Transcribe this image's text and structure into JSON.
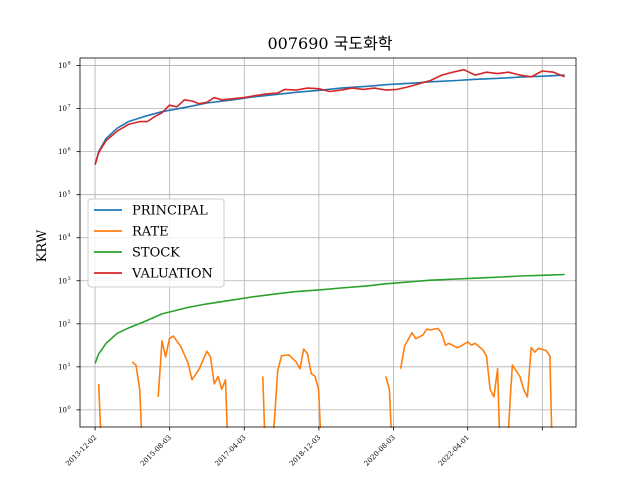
{
  "chart_data": {
    "type": "line",
    "title": "007690 국도화학",
    "xlabel": "",
    "ylabel": "KRW",
    "yscale": "log",
    "ylim": [
      0.4,
      150000000
    ],
    "y_ticks": [
      {
        "value": 1,
        "label": "10",
        "exp": "0"
      },
      {
        "value": 10,
        "label": "10",
        "exp": "1"
      },
      {
        "value": 100,
        "label": "10",
        "exp": "2"
      },
      {
        "value": 1000,
        "label": "10",
        "exp": "3"
      },
      {
        "value": 10000,
        "label": "10",
        "exp": "4"
      },
      {
        "value": 100000,
        "label": "10",
        "exp": "5"
      },
      {
        "value": 1000000,
        "label": "10",
        "exp": "6"
      },
      {
        "value": 10000000,
        "label": "10",
        "exp": "7"
      },
      {
        "value": 100000000,
        "label": "10",
        "exp": "8"
      }
    ],
    "xlim": [
      "2013-08-01",
      "2024-09-01"
    ],
    "x_ticks": [
      {
        "date": "2013-12-02",
        "label": "2013-12-02"
      },
      {
        "date": "2015-08-03",
        "label": "2015-08-03"
      },
      {
        "date": "2017-04-03",
        "label": "2017-04-03"
      },
      {
        "date": "2018-12-03",
        "label": "2018-12-03"
      },
      {
        "date": "2020-08-03",
        "label": "2020-08-03"
      },
      {
        "date": "2022-04-01",
        "label": "2022-04-01"
      },
      {
        "date": "2023-12-01",
        "label": ""
      }
    ],
    "grid": true,
    "legend_position": "center-left",
    "series": [
      {
        "name": "PRINCIPAL",
        "color": "#1f77b4",
        "points": [
          [
            "2013-12-02",
            500000
          ],
          [
            "2014-01-01",
            1000000
          ],
          [
            "2014-03-01",
            2000000
          ],
          [
            "2014-06-01",
            3500000
          ],
          [
            "2014-09-01",
            5000000
          ],
          [
            "2015-01-01",
            6500000
          ],
          [
            "2015-06-01",
            8500000
          ],
          [
            "2016-01-01",
            11000000
          ],
          [
            "2016-06-01",
            13500000
          ],
          [
            "2017-01-01",
            16000000
          ],
          [
            "2017-06-01",
            18500000
          ],
          [
            "2018-01-01",
            21500000
          ],
          [
            "2018-06-01",
            24000000
          ],
          [
            "2019-01-01",
            27000000
          ],
          [
            "2019-06-01",
            30000000
          ],
          [
            "2020-01-01",
            33000000
          ],
          [
            "2020-06-01",
            36000000
          ],
          [
            "2021-01-01",
            39000000
          ],
          [
            "2021-06-01",
            42000000
          ],
          [
            "2022-01-01",
            45000000
          ],
          [
            "2022-06-01",
            48000000
          ],
          [
            "2023-01-01",
            51000000
          ],
          [
            "2023-06-01",
            54000000
          ],
          [
            "2024-01-01",
            57000000
          ],
          [
            "2024-06-01",
            60000000
          ]
        ]
      },
      {
        "name": "RATE",
        "color": "#ff7f0e",
        "points": [
          [
            "2013-12-02",
            null
          ],
          [
            "2014-01-01",
            4
          ],
          [
            "2014-01-15",
            0.1
          ],
          [
            "2014-02-01",
            null
          ],
          [
            "2014-09-01",
            null
          ],
          [
            "2014-10-01",
            13
          ],
          [
            "2014-11-01",
            11
          ],
          [
            "2014-12-01",
            3
          ],
          [
            "2014-12-15",
            0.1
          ],
          [
            "2015-01-01",
            null
          ],
          [
            "2015-04-01",
            null
          ],
          [
            "2015-05-01",
            2
          ],
          [
            "2015-06-01",
            40
          ],
          [
            "2015-07-01",
            17
          ],
          [
            "2015-08-01",
            45
          ],
          [
            "2015-09-01",
            52
          ],
          [
            "2015-11-01",
            30
          ],
          [
            "2016-01-01",
            12
          ],
          [
            "2016-02-01",
            5
          ],
          [
            "2016-04-01",
            9
          ],
          [
            "2016-06-01",
            23
          ],
          [
            "2016-07-01",
            17
          ],
          [
            "2016-08-01",
            4
          ],
          [
            "2016-09-01",
            6
          ],
          [
            "2016-10-01",
            3
          ],
          [
            "2016-11-01",
            5
          ],
          [
            "2016-11-15",
            0.1
          ],
          [
            "2016-12-01",
            null
          ],
          [
            "2017-08-01",
            null
          ],
          [
            "2017-09-01",
            6
          ],
          [
            "2017-09-15",
            0.1
          ],
          [
            "2017-10-01",
            null
          ],
          [
            "2017-11-01",
            null
          ],
          [
            "2017-12-01",
            0.1
          ],
          [
            "2018-01-01",
            8
          ],
          [
            "2018-02-01",
            18
          ],
          [
            "2018-04-01",
            19
          ],
          [
            "2018-06-01",
            13
          ],
          [
            "2018-07-01",
            9
          ],
          [
            "2018-08-01",
            26
          ],
          [
            "2018-09-01",
            20
          ],
          [
            "2018-10-01",
            7
          ],
          [
            "2018-11-01",
            6
          ],
          [
            "2018-12-01",
            3
          ],
          [
            "2018-12-15",
            0.1
          ],
          [
            "2019-01-01",
            null
          ],
          [
            "2020-05-01",
            null
          ],
          [
            "2020-06-01",
            6
          ],
          [
            "2020-07-01",
            3
          ],
          [
            "2020-07-15",
            0.1
          ],
          [
            "2020-08-01",
            null
          ],
          [
            "2020-09-01",
            null
          ],
          [
            "2020-10-01",
            9
          ],
          [
            "2020-11-01",
            30
          ],
          [
            "2021-01-01",
            62
          ],
          [
            "2021-02-01",
            45
          ],
          [
            "2021-04-01",
            55
          ],
          [
            "2021-05-01",
            75
          ],
          [
            "2021-06-01",
            72
          ],
          [
            "2021-08-01",
            78
          ],
          [
            "2021-09-01",
            60
          ],
          [
            "2021-10-01",
            32
          ],
          [
            "2021-11-01",
            35
          ],
          [
            "2022-01-01",
            28
          ],
          [
            "2022-02-01",
            30
          ],
          [
            "2022-04-01",
            38
          ],
          [
            "2022-05-01",
            32
          ],
          [
            "2022-06-01",
            35
          ],
          [
            "2022-08-01",
            25
          ],
          [
            "2022-09-01",
            18
          ],
          [
            "2022-10-01",
            3
          ],
          [
            "2022-11-01",
            2
          ],
          [
            "2022-12-01",
            9
          ],
          [
            "2022-12-15",
            0.1
          ],
          [
            "2023-01-01",
            null
          ],
          [
            "2023-02-01",
            null
          ],
          [
            "2023-03-01",
            0.1
          ],
          [
            "2023-03-15",
            2
          ],
          [
            "2023-04-01",
            11
          ],
          [
            "2023-06-01",
            6
          ],
          [
            "2023-07-01",
            3
          ],
          [
            "2023-08-01",
            2
          ],
          [
            "2023-09-01",
            28
          ],
          [
            "2023-10-01",
            22
          ],
          [
            "2023-11-01",
            27
          ],
          [
            "2024-01-01",
            24
          ],
          [
            "2024-02-01",
            18
          ],
          [
            "2024-02-15",
            0.1
          ],
          [
            "2024-03-01",
            null
          ]
        ]
      },
      {
        "name": "STOCK",
        "color": "#2ca02c",
        "points": [
          [
            "2013-12-02",
            12
          ],
          [
            "2014-01-01",
            20
          ],
          [
            "2014-03-01",
            35
          ],
          [
            "2014-06-01",
            60
          ],
          [
            "2014-09-01",
            80
          ],
          [
            "2015-01-01",
            110
          ],
          [
            "2015-06-01",
            170
          ],
          [
            "2016-01-01",
            240
          ],
          [
            "2016-06-01",
            290
          ],
          [
            "2017-01-01",
            360
          ],
          [
            "2017-06-01",
            420
          ],
          [
            "2018-01-01",
            500
          ],
          [
            "2018-06-01",
            560
          ],
          [
            "2019-01-01",
            620
          ],
          [
            "2019-06-01",
            680
          ],
          [
            "2020-01-01",
            760
          ],
          [
            "2020-06-01",
            850
          ],
          [
            "2021-01-01",
            950
          ],
          [
            "2021-06-01",
            1030
          ],
          [
            "2022-01-01",
            1100
          ],
          [
            "2022-06-01",
            1150
          ],
          [
            "2023-01-01",
            1220
          ],
          [
            "2023-06-01",
            1290
          ],
          [
            "2024-01-01",
            1350
          ],
          [
            "2024-06-01",
            1400
          ]
        ]
      },
      {
        "name": "VALUATION",
        "color": "#d62728",
        "points": [
          [
            "2013-12-02",
            500000
          ],
          [
            "2014-01-01",
            950000
          ],
          [
            "2014-03-01",
            1800000
          ],
          [
            "2014-06-01",
            3000000
          ],
          [
            "2014-09-01",
            4300000
          ],
          [
            "2014-12-01",
            5000000
          ],
          [
            "2015-02-01",
            5000000
          ],
          [
            "2015-04-01",
            6500000
          ],
          [
            "2015-06-01",
            8000000
          ],
          [
            "2015-08-01",
            12000000
          ],
          [
            "2015-10-01",
            11000000
          ],
          [
            "2015-12-01",
            16000000
          ],
          [
            "2016-02-01",
            15000000
          ],
          [
            "2016-04-01",
            13000000
          ],
          [
            "2016-06-01",
            14000000
          ],
          [
            "2016-08-01",
            18000000
          ],
          [
            "2016-10-01",
            16000000
          ],
          [
            "2017-01-01",
            17000000
          ],
          [
            "2017-04-01",
            18000000
          ],
          [
            "2017-07-01",
            20000000
          ],
          [
            "2017-10-01",
            22000000
          ],
          [
            "2018-01-01",
            23000000
          ],
          [
            "2018-03-01",
            28000000
          ],
          [
            "2018-06-01",
            27000000
          ],
          [
            "2018-09-01",
            30000000
          ],
          [
            "2018-12-01",
            29000000
          ],
          [
            "2019-03-01",
            25000000
          ],
          [
            "2019-06-01",
            27000000
          ],
          [
            "2019-09-01",
            30000000
          ],
          [
            "2019-12-01",
            28000000
          ],
          [
            "2020-03-01",
            30000000
          ],
          [
            "2020-06-01",
            27000000
          ],
          [
            "2020-09-01",
            28000000
          ],
          [
            "2020-12-01",
            32000000
          ],
          [
            "2021-03-01",
            38000000
          ],
          [
            "2021-06-01",
            45000000
          ],
          [
            "2021-09-01",
            60000000
          ],
          [
            "2021-12-01",
            70000000
          ],
          [
            "2022-03-01",
            80000000
          ],
          [
            "2022-06-01",
            60000000
          ],
          [
            "2022-09-01",
            70000000
          ],
          [
            "2022-12-01",
            65000000
          ],
          [
            "2023-03-01",
            70000000
          ],
          [
            "2023-06-01",
            60000000
          ],
          [
            "2023-09-01",
            55000000
          ],
          [
            "2023-12-01",
            75000000
          ],
          [
            "2024-03-01",
            70000000
          ],
          [
            "2024-06-01",
            55000000
          ]
        ]
      }
    ]
  }
}
